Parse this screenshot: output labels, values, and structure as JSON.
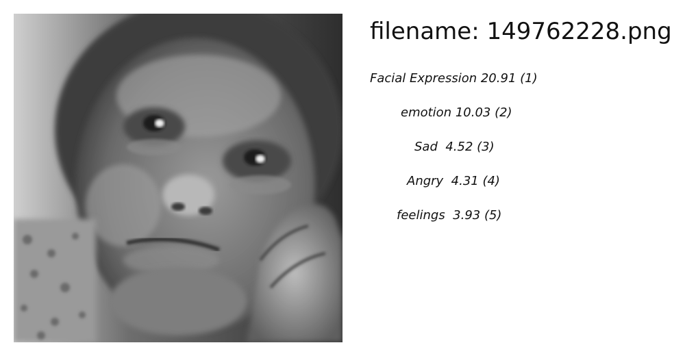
{
  "filename_text": "filename: 149762228.png",
  "labels": [
    {
      "text": "Facial Expression 20.91 (1)"
    },
    {
      "text": "emotion 10.03 (2)"
    },
    {
      "text": "Sad  4.52 (3)"
    },
    {
      "text": "Angry  4.31 (4)"
    },
    {
      "text": "feelings  3.93 (5)"
    }
  ]
}
